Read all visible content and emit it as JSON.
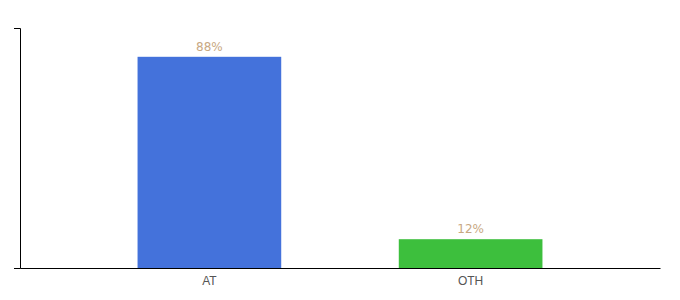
{
  "chart_data": {
    "type": "bar",
    "categories": [
      "AT",
      "OTH"
    ],
    "values": [
      88,
      12
    ],
    "value_labels": [
      "88%",
      "12%"
    ],
    "colors": [
      "#4472db",
      "#3dbf3d"
    ],
    "ylim": [
      0,
      100
    ],
    "data_labels": true,
    "tick_labels": "x",
    "grid": false
  }
}
